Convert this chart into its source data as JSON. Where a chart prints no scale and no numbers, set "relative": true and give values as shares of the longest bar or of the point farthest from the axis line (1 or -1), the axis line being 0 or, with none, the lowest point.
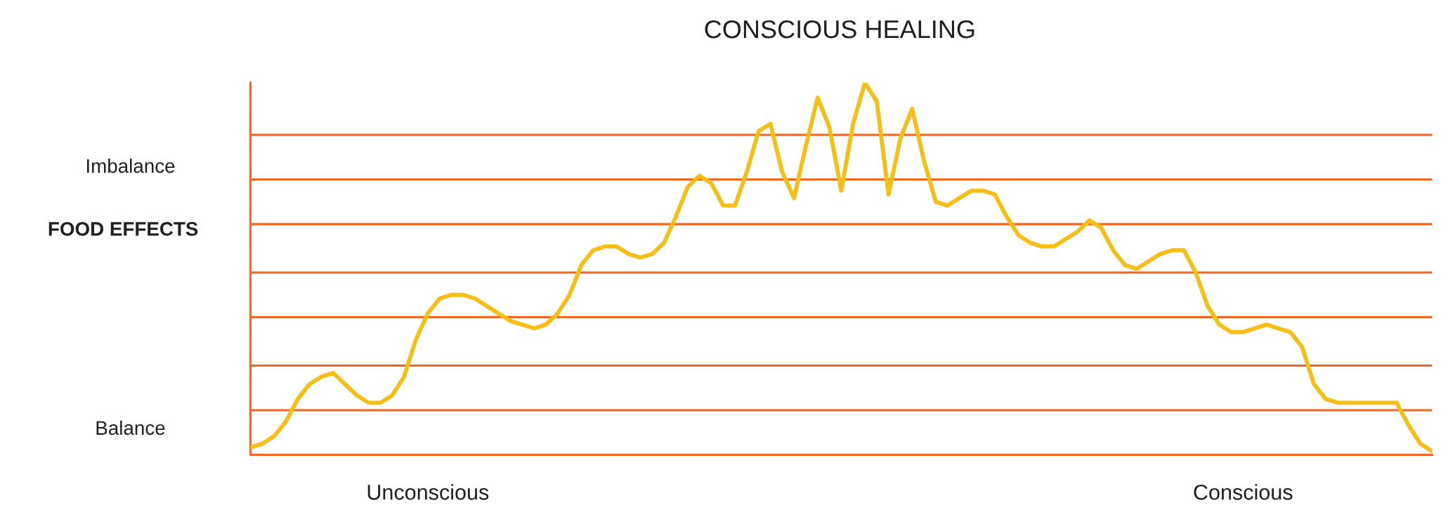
{
  "chart_data": {
    "type": "line",
    "title": "CONSCIOUS HEALING",
    "ylabel": "FOOD EFFECTS",
    "relative": true,
    "annotations": [
      "Imbalance",
      "Balance"
    ],
    "categories": [
      null,
      null,
      null,
      null,
      null,
      null,
      null,
      null,
      null,
      null,
      null,
      null,
      null,
      null,
      null,
      "Unconscious",
      null,
      null,
      null,
      null,
      null,
      null,
      null,
      null,
      null,
      null,
      null,
      null,
      null,
      null,
      null,
      null,
      null,
      null,
      null,
      null,
      null,
      null,
      null,
      null,
      null,
      null,
      null,
      null,
      null,
      null,
      null,
      null,
      null,
      null,
      null,
      null,
      null,
      null,
      null,
      null,
      null,
      null,
      null,
      null,
      null,
      null,
      null,
      null,
      null,
      null,
      null,
      null,
      null,
      null,
      null,
      null,
      null,
      null,
      null,
      null,
      null,
      null,
      null,
      null,
      null,
      null,
      null,
      null,
      "Conscious",
      null,
      null,
      null,
      null,
      null,
      null,
      null,
      null,
      null,
      null,
      null,
      null,
      null,
      null,
      null,
      null
    ],
    "series": [
      {
        "color": "#f7bf16",
        "values": [
          0.02,
          0.03,
          0.05,
          0.09,
          0.15,
          0.19,
          0.21,
          0.22,
          0.19,
          0.16,
          0.14,
          0.14,
          0.16,
          0.21,
          0.31,
          0.38,
          0.42,
          0.43,
          0.43,
          0.42,
          0.4,
          0.38,
          0.36,
          0.35,
          0.34,
          0.35,
          0.38,
          0.43,
          0.51,
          0.55,
          0.56,
          0.56,
          0.54,
          0.53,
          0.54,
          0.57,
          0.64,
          0.72,
          0.75,
          0.73,
          0.67,
          0.67,
          0.76,
          0.87,
          0.89,
          0.76,
          0.69,
          0.83,
          0.96,
          0.88,
          0.71,
          0.89,
          1.0,
          0.95,
          0.7,
          0.85,
          0.93,
          0.79,
          0.68,
          0.67,
          0.69,
          0.71,
          0.71,
          0.7,
          0.64,
          0.59,
          0.57,
          0.56,
          0.56,
          0.58,
          0.6,
          0.63,
          0.61,
          0.55,
          0.51,
          0.5,
          0.52,
          0.54,
          0.55,
          0.55,
          0.49,
          0.4,
          0.35,
          0.33,
          0.33,
          0.34,
          0.35,
          0.34,
          0.33,
          0.29,
          0.19,
          0.15,
          0.14,
          0.14,
          0.14,
          0.14,
          0.14,
          0.14,
          0.08,
          0.03,
          0.01
        ]
      }
    ],
    "ref_lines": [
      {
        "axis": "y",
        "value": 0.12,
        "color": "#f26522"
      },
      {
        "axis": "y",
        "value": 0.24,
        "color": "#f26522"
      },
      {
        "axis": "y",
        "value": 0.37,
        "color": "#f26522"
      },
      {
        "axis": "y",
        "value": 0.49,
        "color": "#f26522"
      },
      {
        "axis": "y",
        "value": 0.62,
        "color": "#f26522"
      },
      {
        "axis": "y",
        "value": 0.74,
        "color": "#f26522"
      },
      {
        "axis": "y",
        "value": 0.86,
        "color": "#f26522"
      }
    ],
    "line_style": "solid",
    "legend": false,
    "grid": false
  }
}
